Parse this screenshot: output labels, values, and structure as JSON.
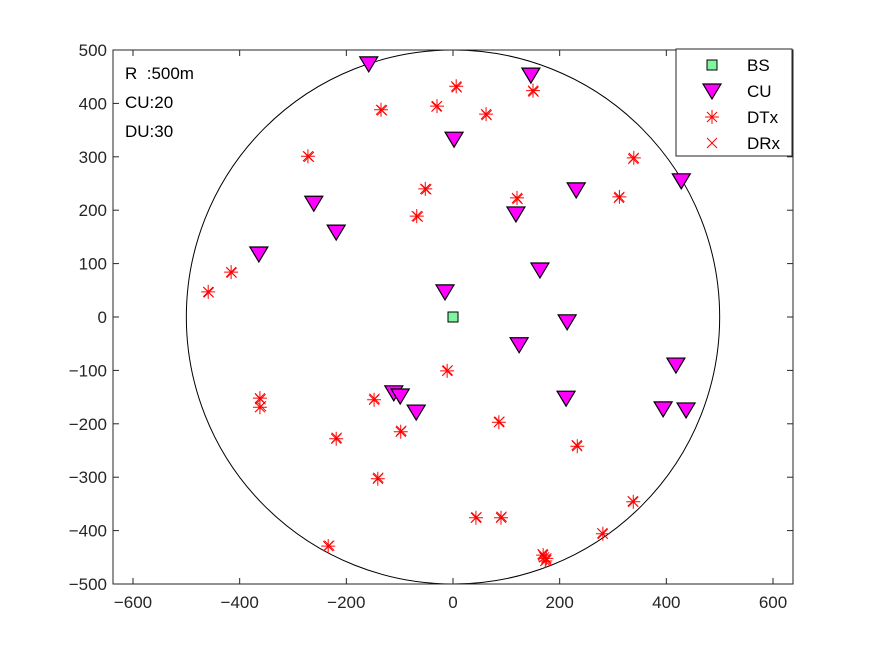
{
  "chart_data": {
    "type": "scatter",
    "title": "",
    "xlabel": "",
    "ylabel": "",
    "xlim": [
      -637.5,
      637.5
    ],
    "ylim": [
      -500,
      500
    ],
    "xticks": [
      -600,
      -400,
      -200,
      0,
      200,
      400,
      600
    ],
    "yticks": [
      -500,
      -400,
      -300,
      -200,
      -100,
      0,
      100,
      200,
      300,
      400,
      500
    ],
    "grid": false,
    "legend_placement": "top-right",
    "annotations": [
      "R  :500m",
      "CU:20",
      "DU:30"
    ],
    "circle": {
      "center": [
        0,
        0
      ],
      "radius": 500,
      "color": "#000000"
    },
    "series": [
      {
        "name": "BS",
        "marker": "square",
        "color": "#7ff5a0",
        "edge": "#000000",
        "points": [
          [
            0,
            0
          ]
        ]
      },
      {
        "name": "CU",
        "marker": "triangle-down",
        "color": "#ff00ff",
        "edge": "#000000",
        "points": [
          [
            -158,
            474
          ],
          [
            146,
            453
          ],
          [
            2,
            333
          ],
          [
            231,
            238
          ],
          [
            428,
            255
          ],
          [
            118,
            193
          ],
          [
            -261,
            213
          ],
          [
            -219,
            159
          ],
          [
            -364,
            118
          ],
          [
            163,
            88
          ],
          [
            -15,
            47
          ],
          [
            214,
            -9
          ],
          [
            124,
            -52
          ],
          [
            -111,
            -142
          ],
          [
            -99,
            -148
          ],
          [
            -69,
            -178
          ],
          [
            212,
            -152
          ],
          [
            418,
            -90
          ],
          [
            394,
            -172
          ],
          [
            437,
            -174
          ]
        ]
      },
      {
        "name": "DTx",
        "marker": "asterisk",
        "color": "#ff0000",
        "points": [
          [
            6,
            432
          ],
          [
            -30,
            395
          ],
          [
            -135,
            388
          ],
          [
            62,
            380
          ],
          [
            150,
            424
          ],
          [
            -272,
            301
          ],
          [
            339,
            298
          ],
          [
            -52,
            240
          ],
          [
            312,
            225
          ],
          [
            120,
            223
          ],
          [
            -68,
            189
          ],
          [
            -416,
            84
          ],
          [
            -459,
            47
          ],
          [
            -11,
            -101
          ],
          [
            -362,
            -152
          ],
          [
            -362,
            -169
          ],
          [
            -148,
            -155
          ],
          [
            -219,
            -228
          ],
          [
            -98,
            -215
          ],
          [
            86,
            -197
          ],
          [
            233,
            -242
          ],
          [
            -141,
            -303
          ],
          [
            43,
            -376
          ],
          [
            90,
            -376
          ],
          [
            338,
            -346
          ],
          [
            281,
            -406
          ],
          [
            -234,
            -429
          ],
          [
            169,
            -446
          ],
          [
            173,
            -457
          ],
          [
            175,
            -452
          ]
        ]
      },
      {
        "name": "DRx",
        "marker": "x",
        "color": "#ff0000",
        "points": [
          [
            7,
            430
          ],
          [
            -31,
            394
          ],
          [
            -133,
            387
          ],
          [
            63,
            378
          ],
          [
            151,
            422
          ],
          [
            -270,
            300
          ],
          [
            338,
            296
          ],
          [
            -50,
            239
          ],
          [
            311,
            223
          ],
          [
            121,
            221
          ],
          [
            -66,
            188
          ],
          [
            -415,
            83
          ],
          [
            -458,
            46
          ],
          [
            -10,
            -100
          ],
          [
            -361,
            -154
          ],
          [
            -360,
            -167
          ],
          [
            -147,
            -153
          ],
          [
            -218,
            -226
          ],
          [
            -97,
            -213
          ],
          [
            87,
            -196
          ],
          [
            232,
            -240
          ],
          [
            -140,
            -301
          ],
          [
            44,
            -375
          ],
          [
            91,
            -374
          ],
          [
            337,
            -345
          ],
          [
            280,
            -405
          ],
          [
            -232,
            -428
          ],
          [
            168,
            -444
          ],
          [
            175,
            -455
          ],
          [
            171,
            -450
          ]
        ]
      }
    ]
  }
}
